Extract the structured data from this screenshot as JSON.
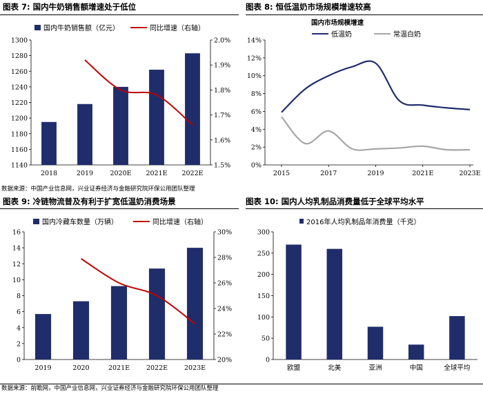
{
  "panels": [
    {
      "title": "图表 7:  国内牛奶销售额增速处于低位",
      "chart_data": {
        "type": "bar",
        "categories": [
          "2018",
          "2019",
          "2020E",
          "2021E",
          "2022E"
        ],
        "series": [
          {
            "name": "国内牛奶销售额（亿元）",
            "type": "bar",
            "axis": "left",
            "values": [
              1195,
              1218,
              1240,
              1262,
              1283
            ],
            "color": "#1f2d6b"
          },
          {
            "name": "同比增速（右轴）",
            "type": "line",
            "axis": "right",
            "values": [
              null,
              1.92,
              1.8,
              1.78,
              1.66
            ],
            "color": "#c00000"
          }
        ],
        "ylim": [
          1140,
          1300
        ],
        "yticks": [
          "1140",
          "1160",
          "1180",
          "1200",
          "1220",
          "1240",
          "1260",
          "1280",
          "1300"
        ],
        "y2lim": [
          1.5,
          2.0
        ],
        "y2ticks": [
          "1.5%",
          "1.6%",
          "1.7%",
          "1.8%",
          "1.9%",
          "2.0%"
        ],
        "legend": "top"
      }
    },
    {
      "title": "图表 8:  恒低温奶市场规模增速较高",
      "chart_data": {
        "type": "line",
        "title": "国内市场规模增速",
        "x": [
          2015,
          2016,
          2017,
          2018,
          2019,
          2020,
          2021,
          2022,
          2023
        ],
        "xticks": [
          "2015",
          "2017",
          "2019",
          "2021E",
          "2023E"
        ],
        "series": [
          {
            "name": "低温奶",
            "values": [
              5.9,
              8.5,
              10.0,
              11.0,
              11.4,
              7.2,
              6.7,
              6.4,
              6.2
            ],
            "color": "#1f2d6b"
          },
          {
            "name": "常温白奶",
            "values": [
              5.4,
              2.4,
              3.8,
              1.8,
              1.8,
              1.9,
              2.1,
              1.7,
              1.7
            ],
            "color": "#a6a6a6"
          }
        ],
        "ylim": [
          0,
          14
        ],
        "yticks": [
          "0%",
          "2%",
          "4%",
          "6%",
          "8%",
          "10%",
          "12%",
          "14%"
        ],
        "legend": "top"
      }
    },
    {
      "title": "图表 9:  冷链物流普及有利于扩宽低温奶消费场景",
      "chart_data": {
        "type": "bar",
        "categories": [
          "2019",
          "2020",
          "2021E",
          "2022E",
          "2023E"
        ],
        "series": [
          {
            "name": "国内冷藏车数量（万辆）",
            "type": "bar",
            "axis": "left",
            "values": [
              5.7,
              7.3,
              9.2,
              11.4,
              14.0
            ],
            "color": "#1f2d6b"
          },
          {
            "name": "同比增速（右轴）",
            "type": "line",
            "axis": "right",
            "values": [
              null,
              27.9,
              26.0,
              25.0,
              22.8
            ],
            "color": "#c00000"
          }
        ],
        "ylim": [
          0,
          16
        ],
        "yticks": [
          "0",
          "2",
          "4",
          "6",
          "8",
          "10",
          "12",
          "14",
          "16"
        ],
        "y2lim": [
          20,
          30
        ],
        "y2ticks": [
          "20%",
          "22%",
          "24%",
          "26%",
          "28%",
          "30%"
        ],
        "legend": "top"
      }
    },
    {
      "title": "图表 10:  国内人均乳制品消费量低于全球平均水平",
      "chart_data": {
        "type": "bar",
        "categories": [
          "欧盟",
          "北美",
          "亚洲",
          "中国",
          "全球平均"
        ],
        "series": [
          {
            "name": "2016年人均乳制品年消费量（千克）",
            "values": [
              270,
              260,
              77,
              35,
              102
            ],
            "color": "#1f2d6b"
          }
        ],
        "ylim": [
          0,
          300
        ],
        "yticks": [
          "0",
          "50",
          "100",
          "150",
          "200",
          "250",
          "300"
        ],
        "legend": "top"
      }
    }
  ],
  "sources": [
    "数据来源：中国产业信息网，兴业证券经济与金融研究院环保公用团队整理",
    "数据来源：前瞻网，中国产业信息网，兴业证券经济与金融研究院环保公用团队整理"
  ]
}
